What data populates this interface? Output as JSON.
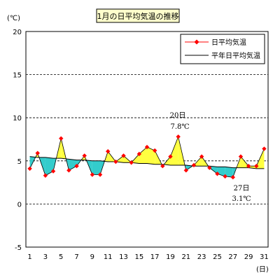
{
  "chart_data": {
    "type": "line",
    "title": "1月の日平均気温の推移",
    "y_unit_label": "(℃)",
    "x_unit_label": "(日)",
    "ylim": [
      -5,
      20
    ],
    "y_ticks": [
      -5,
      0,
      5,
      10,
      15,
      20
    ],
    "x_ticks": [
      1,
      3,
      5,
      7,
      9,
      11,
      13,
      15,
      17,
      19,
      21,
      23,
      25,
      27,
      29,
      31
    ],
    "grid": "dashed horizontal at 5, 10, 15",
    "legend_position": "top-right",
    "x": [
      1,
      2,
      3,
      4,
      5,
      6,
      7,
      8,
      9,
      10,
      11,
      12,
      13,
      14,
      15,
      16,
      17,
      18,
      19,
      20,
      21,
      22,
      23,
      24,
      25,
      26,
      27,
      28,
      29,
      30,
      31
    ],
    "series": [
      {
        "name": "日平均気温",
        "color": "#ff0000",
        "marker": "diamond",
        "values": [
          4.1,
          5.9,
          3.3,
          3.8,
          7.6,
          3.9,
          4.4,
          5.6,
          3.4,
          3.4,
          6.1,
          4.9,
          5.6,
          4.8,
          5.8,
          6.6,
          6.2,
          4.4,
          5.5,
          7.8,
          3.9,
          4.5,
          5.5,
          4.2,
          3.5,
          3.2,
          3.1,
          5.5,
          4.4,
          4.4,
          6.4
        ]
      },
      {
        "name": "平年日平均気温",
        "color": "#000000",
        "marker": "none",
        "values": [
          5.5,
          5.4,
          5.4,
          5.3,
          5.3,
          5.2,
          5.1,
          5.1,
          5.0,
          5.0,
          4.9,
          4.9,
          4.8,
          4.8,
          4.7,
          4.7,
          4.6,
          4.6,
          4.5,
          4.5,
          4.5,
          4.4,
          4.4,
          4.4,
          4.3,
          4.3,
          4.2,
          4.2,
          4.2,
          4.1,
          4.1
        ]
      }
    ],
    "fill_above_color": "#ffff40",
    "fill_below_color": "#33cccc",
    "annotations": [
      {
        "day_label": "20日",
        "value_label": "7.8℃",
        "x": 20,
        "y": 7.8
      },
      {
        "day_label": "27日",
        "value_label": "3.1℃",
        "x": 27,
        "y": 3.1
      }
    ]
  }
}
